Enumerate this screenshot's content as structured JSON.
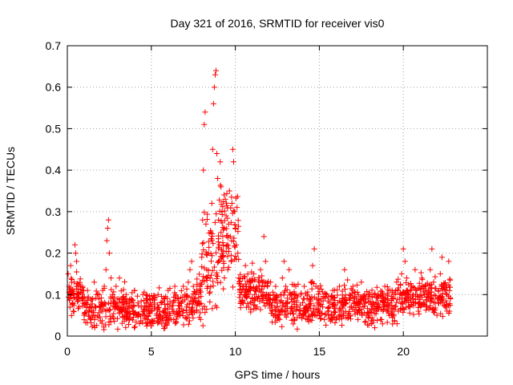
{
  "chart_data": {
    "type": "scatter",
    "title": "Day 321 of 2016, SRMTID for receiver vis0",
    "xlabel": "GPS time / hours",
    "ylabel": "SRMTID / TECUs",
    "xlim": [
      0,
      25
    ],
    "ylim": [
      0,
      0.7
    ],
    "xticks": [
      0,
      5,
      10,
      15,
      20
    ],
    "yticks": [
      0,
      0.1,
      0.2,
      0.3,
      0.4,
      0.5,
      0.6,
      0.7
    ],
    "grid": true,
    "marker": "+",
    "color": "#ff0000",
    "series": [
      {
        "name": "vis0",
        "points": [
          [
            0.05,
            0.15
          ],
          [
            0.1,
            0.12
          ],
          [
            0.15,
            0.09
          ],
          [
            0.2,
            0.17
          ],
          [
            0.25,
            0.11
          ],
          [
            0.3,
            0.08
          ],
          [
            0.35,
            0.06
          ],
          [
            0.4,
            0.13
          ],
          [
            0.45,
            0.22
          ],
          [
            0.5,
            0.2
          ],
          [
            0.55,
            0.18
          ],
          [
            0.6,
            0.1
          ],
          [
            0.7,
            0.07
          ],
          [
            0.8,
            0.12
          ],
          [
            0.9,
            0.09
          ],
          [
            1.0,
            0.05
          ],
          [
            1.1,
            0.08
          ],
          [
            1.2,
            0.11
          ],
          [
            1.3,
            0.06
          ],
          [
            1.4,
            0.04
          ],
          [
            1.5,
            0.09
          ],
          [
            1.6,
            0.13
          ],
          [
            1.7,
            0.07
          ],
          [
            1.8,
            0.05
          ],
          [
            1.9,
            0.1
          ],
          [
            2.0,
            0.08
          ],
          [
            2.1,
            0.06
          ],
          [
            2.2,
            0.12
          ],
          [
            2.3,
            0.16
          ],
          [
            2.35,
            0.23
          ],
          [
            2.4,
            0.26
          ],
          [
            2.45,
            0.28
          ],
          [
            2.5,
            0.2
          ],
          [
            2.6,
            0.14
          ],
          [
            2.7,
            0.1
          ],
          [
            2.8,
            0.07
          ],
          [
            2.9,
            0.12
          ],
          [
            3.0,
            0.09
          ],
          [
            3.1,
            0.14
          ],
          [
            3.2,
            0.06
          ],
          [
            3.3,
            0.08
          ],
          [
            3.4,
            0.05
          ],
          [
            3.5,
            0.1
          ],
          [
            3.6,
            0.07
          ],
          [
            3.7,
            0.04
          ],
          [
            3.8,
            0.09
          ],
          [
            3.9,
            0.06
          ],
          [
            4.0,
            0.11
          ],
          [
            4.1,
            0.05
          ],
          [
            4.2,
            0.08
          ],
          [
            4.3,
            0.03
          ],
          [
            4.4,
            0.07
          ],
          [
            4.5,
            0.1
          ],
          [
            4.6,
            0.05
          ],
          [
            4.7,
            0.08
          ],
          [
            4.8,
            0.04
          ],
          [
            4.9,
            0.09
          ],
          [
            5.0,
            0.06
          ],
          [
            5.1,
            0.03
          ],
          [
            5.2,
            0.07
          ],
          [
            5.3,
            0.05
          ],
          [
            5.4,
            0.1
          ],
          [
            5.5,
            0.04
          ],
          [
            5.6,
            0.08
          ],
          [
            5.7,
            0.06
          ],
          [
            5.8,
            0.09
          ],
          [
            5.9,
            0.05
          ],
          [
            6.0,
            0.11
          ],
          [
            6.1,
            0.07
          ],
          [
            6.2,
            0.04
          ],
          [
            6.3,
            0.08
          ],
          [
            6.4,
            0.12
          ],
          [
            6.5,
            0.06
          ],
          [
            6.6,
            0.09
          ],
          [
            6.7,
            0.05
          ],
          [
            6.8,
            0.08
          ],
          [
            6.9,
            0.12
          ],
          [
            7.0,
            0.1
          ],
          [
            7.1,
            0.07
          ],
          [
            7.2,
            0.13
          ],
          [
            7.3,
            0.16
          ],
          [
            7.4,
            0.18
          ],
          [
            7.5,
            0.12
          ],
          [
            7.6,
            0.09
          ],
          [
            7.7,
            0.06
          ],
          [
            7.8,
            0.08
          ],
          [
            7.9,
            0.12
          ],
          [
            8.0,
            0.19
          ],
          [
            8.05,
            0.28
          ],
          [
            8.1,
            0.4
          ],
          [
            8.15,
            0.51
          ],
          [
            8.2,
            0.54
          ],
          [
            8.25,
            0.27
          ],
          [
            8.3,
            0.16
          ],
          [
            8.35,
            0.12
          ],
          [
            8.4,
            0.2
          ],
          [
            8.5,
            0.14
          ],
          [
            8.55,
            0.25
          ],
          [
            8.6,
            0.32
          ],
          [
            8.65,
            0.45
          ],
          [
            8.7,
            0.56
          ],
          [
            8.75,
            0.6
          ],
          [
            8.8,
            0.63
          ],
          [
            8.85,
            0.64
          ],
          [
            8.9,
            0.44
          ],
          [
            8.95,
            0.38
          ],
          [
            9.0,
            0.28
          ],
          [
            9.05,
            0.22
          ],
          [
            9.1,
            0.42
          ],
          [
            9.15,
            0.36
          ],
          [
            9.2,
            0.3
          ],
          [
            9.25,
            0.24
          ],
          [
            9.3,
            0.18
          ],
          [
            9.35,
            0.26
          ],
          [
            9.4,
            0.33
          ],
          [
            9.45,
            0.29
          ],
          [
            9.5,
            0.22
          ],
          [
            9.55,
            0.16
          ],
          [
            9.6,
            0.27
          ],
          [
            9.65,
            0.35
          ],
          [
            9.7,
            0.24
          ],
          [
            9.75,
            0.18
          ],
          [
            9.8,
            0.32
          ],
          [
            9.85,
            0.45
          ],
          [
            9.9,
            0.42
          ],
          [
            9.95,
            0.3
          ],
          [
            10.0,
            0.26
          ],
          [
            10.05,
            0.22
          ],
          [
            10.1,
            0.31
          ],
          [
            10.15,
            0.2
          ],
          [
            10.2,
            0.14
          ],
          [
            10.3,
            0.1
          ],
          [
            10.4,
            0.08
          ],
          [
            10.5,
            0.12
          ],
          [
            10.6,
            0.17
          ],
          [
            10.7,
            0.1
          ],
          [
            10.8,
            0.07
          ],
          [
            10.9,
            0.13
          ],
          [
            11.0,
            0.09
          ],
          [
            11.1,
            0.15
          ],
          [
            11.2,
            0.11
          ],
          [
            11.3,
            0.07
          ],
          [
            11.4,
            0.12
          ],
          [
            11.5,
            0.16
          ],
          [
            11.6,
            0.09
          ],
          [
            11.7,
            0.24
          ],
          [
            11.8,
            0.18
          ],
          [
            11.9,
            0.12
          ],
          [
            12.0,
            0.08
          ],
          [
            12.1,
            0.13
          ],
          [
            12.2,
            0.06
          ],
          [
            12.3,
            0.09
          ],
          [
            12.4,
            0.12
          ],
          [
            12.5,
            0.07
          ],
          [
            12.6,
            0.05
          ],
          [
            12.7,
            0.1
          ],
          [
            12.8,
            0.14
          ],
          [
            12.9,
            0.18
          ],
          [
            13.0,
            0.12
          ],
          [
            13.1,
            0.08
          ],
          [
            13.2,
            0.16
          ],
          [
            13.3,
            0.1
          ],
          [
            13.4,
            0.06
          ],
          [
            13.5,
            0.09
          ],
          [
            13.6,
            0.12
          ],
          [
            13.7,
            0.07
          ],
          [
            13.8,
            0.05
          ],
          [
            13.9,
            0.1
          ],
          [
            14.0,
            0.08
          ],
          [
            14.1,
            0.12
          ],
          [
            14.2,
            0.06
          ],
          [
            14.3,
            0.04
          ],
          [
            14.4,
            0.09
          ],
          [
            14.5,
            0.13
          ],
          [
            14.6,
            0.17
          ],
          [
            14.7,
            0.21
          ],
          [
            14.8,
            0.12
          ],
          [
            14.9,
            0.08
          ],
          [
            15.0,
            0.05
          ],
          [
            15.1,
            0.09
          ],
          [
            15.2,
            0.07
          ],
          [
            15.3,
            0.04
          ],
          [
            15.4,
            0.1
          ],
          [
            15.5,
            0.06
          ],
          [
            15.6,
            0.08
          ],
          [
            15.7,
            0.05
          ],
          [
            15.8,
            0.11
          ],
          [
            15.9,
            0.07
          ],
          [
            16.0,
            0.04
          ],
          [
            16.1,
            0.08
          ],
          [
            16.2,
            0.12
          ],
          [
            16.3,
            0.06
          ],
          [
            16.4,
            0.09
          ],
          [
            16.5,
            0.16
          ],
          [
            16.6,
            0.08
          ],
          [
            16.7,
            0.05
          ],
          [
            16.8,
            0.1
          ],
          [
            16.9,
            0.07
          ],
          [
            17.0,
            0.12
          ],
          [
            17.1,
            0.06
          ],
          [
            17.2,
            0.09
          ],
          [
            17.3,
            0.04
          ],
          [
            17.4,
            0.08
          ],
          [
            17.5,
            0.13
          ],
          [
            17.6,
            0.07
          ],
          [
            17.7,
            0.1
          ],
          [
            17.8,
            0.05
          ],
          [
            17.9,
            0.09
          ],
          [
            18.0,
            0.06
          ],
          [
            18.1,
            0.03
          ],
          [
            18.2,
            0.08
          ],
          [
            18.3,
            0.02
          ],
          [
            18.4,
            0.06
          ],
          [
            18.5,
            0.1
          ],
          [
            18.6,
            0.07
          ],
          [
            18.7,
            0.04
          ],
          [
            18.8,
            0.09
          ],
          [
            18.9,
            0.12
          ],
          [
            19.0,
            0.06
          ],
          [
            19.1,
            0.08
          ],
          [
            19.2,
            0.11
          ],
          [
            19.3,
            0.05
          ],
          [
            19.4,
            0.09
          ],
          [
            19.5,
            0.07
          ],
          [
            19.6,
            0.13
          ],
          [
            19.7,
            0.06
          ],
          [
            19.8,
            0.1
          ],
          [
            19.9,
            0.15
          ],
          [
            20.0,
            0.21
          ],
          [
            20.1,
            0.18
          ],
          [
            20.2,
            0.14
          ],
          [
            20.3,
            0.1
          ],
          [
            20.4,
            0.07
          ],
          [
            20.5,
            0.12
          ],
          [
            20.6,
            0.09
          ],
          [
            20.7,
            0.16
          ],
          [
            20.8,
            0.11
          ],
          [
            20.9,
            0.06
          ],
          [
            21.0,
            0.1
          ],
          [
            21.1,
            0.14
          ],
          [
            21.2,
            0.08
          ],
          [
            21.3,
            0.12
          ],
          [
            21.4,
            0.07
          ],
          [
            21.5,
            0.1
          ],
          [
            21.6,
            0.16
          ],
          [
            21.7,
            0.21
          ],
          [
            21.8,
            0.13
          ],
          [
            21.9,
            0.08
          ],
          [
            22.0,
            0.05
          ],
          [
            22.1,
            0.11
          ],
          [
            22.2,
            0.15
          ],
          [
            22.3,
            0.19
          ],
          [
            22.4,
            0.12
          ],
          [
            22.5,
            0.07
          ],
          [
            22.6,
            0.1
          ],
          [
            22.7,
            0.18
          ],
          [
            22.75,
            0.06
          ],
          [
            22.8,
            0.09
          ]
        ]
      }
    ],
    "dense_cluster": {
      "description": "dense background noise of + markers",
      "seed": 321
    }
  }
}
